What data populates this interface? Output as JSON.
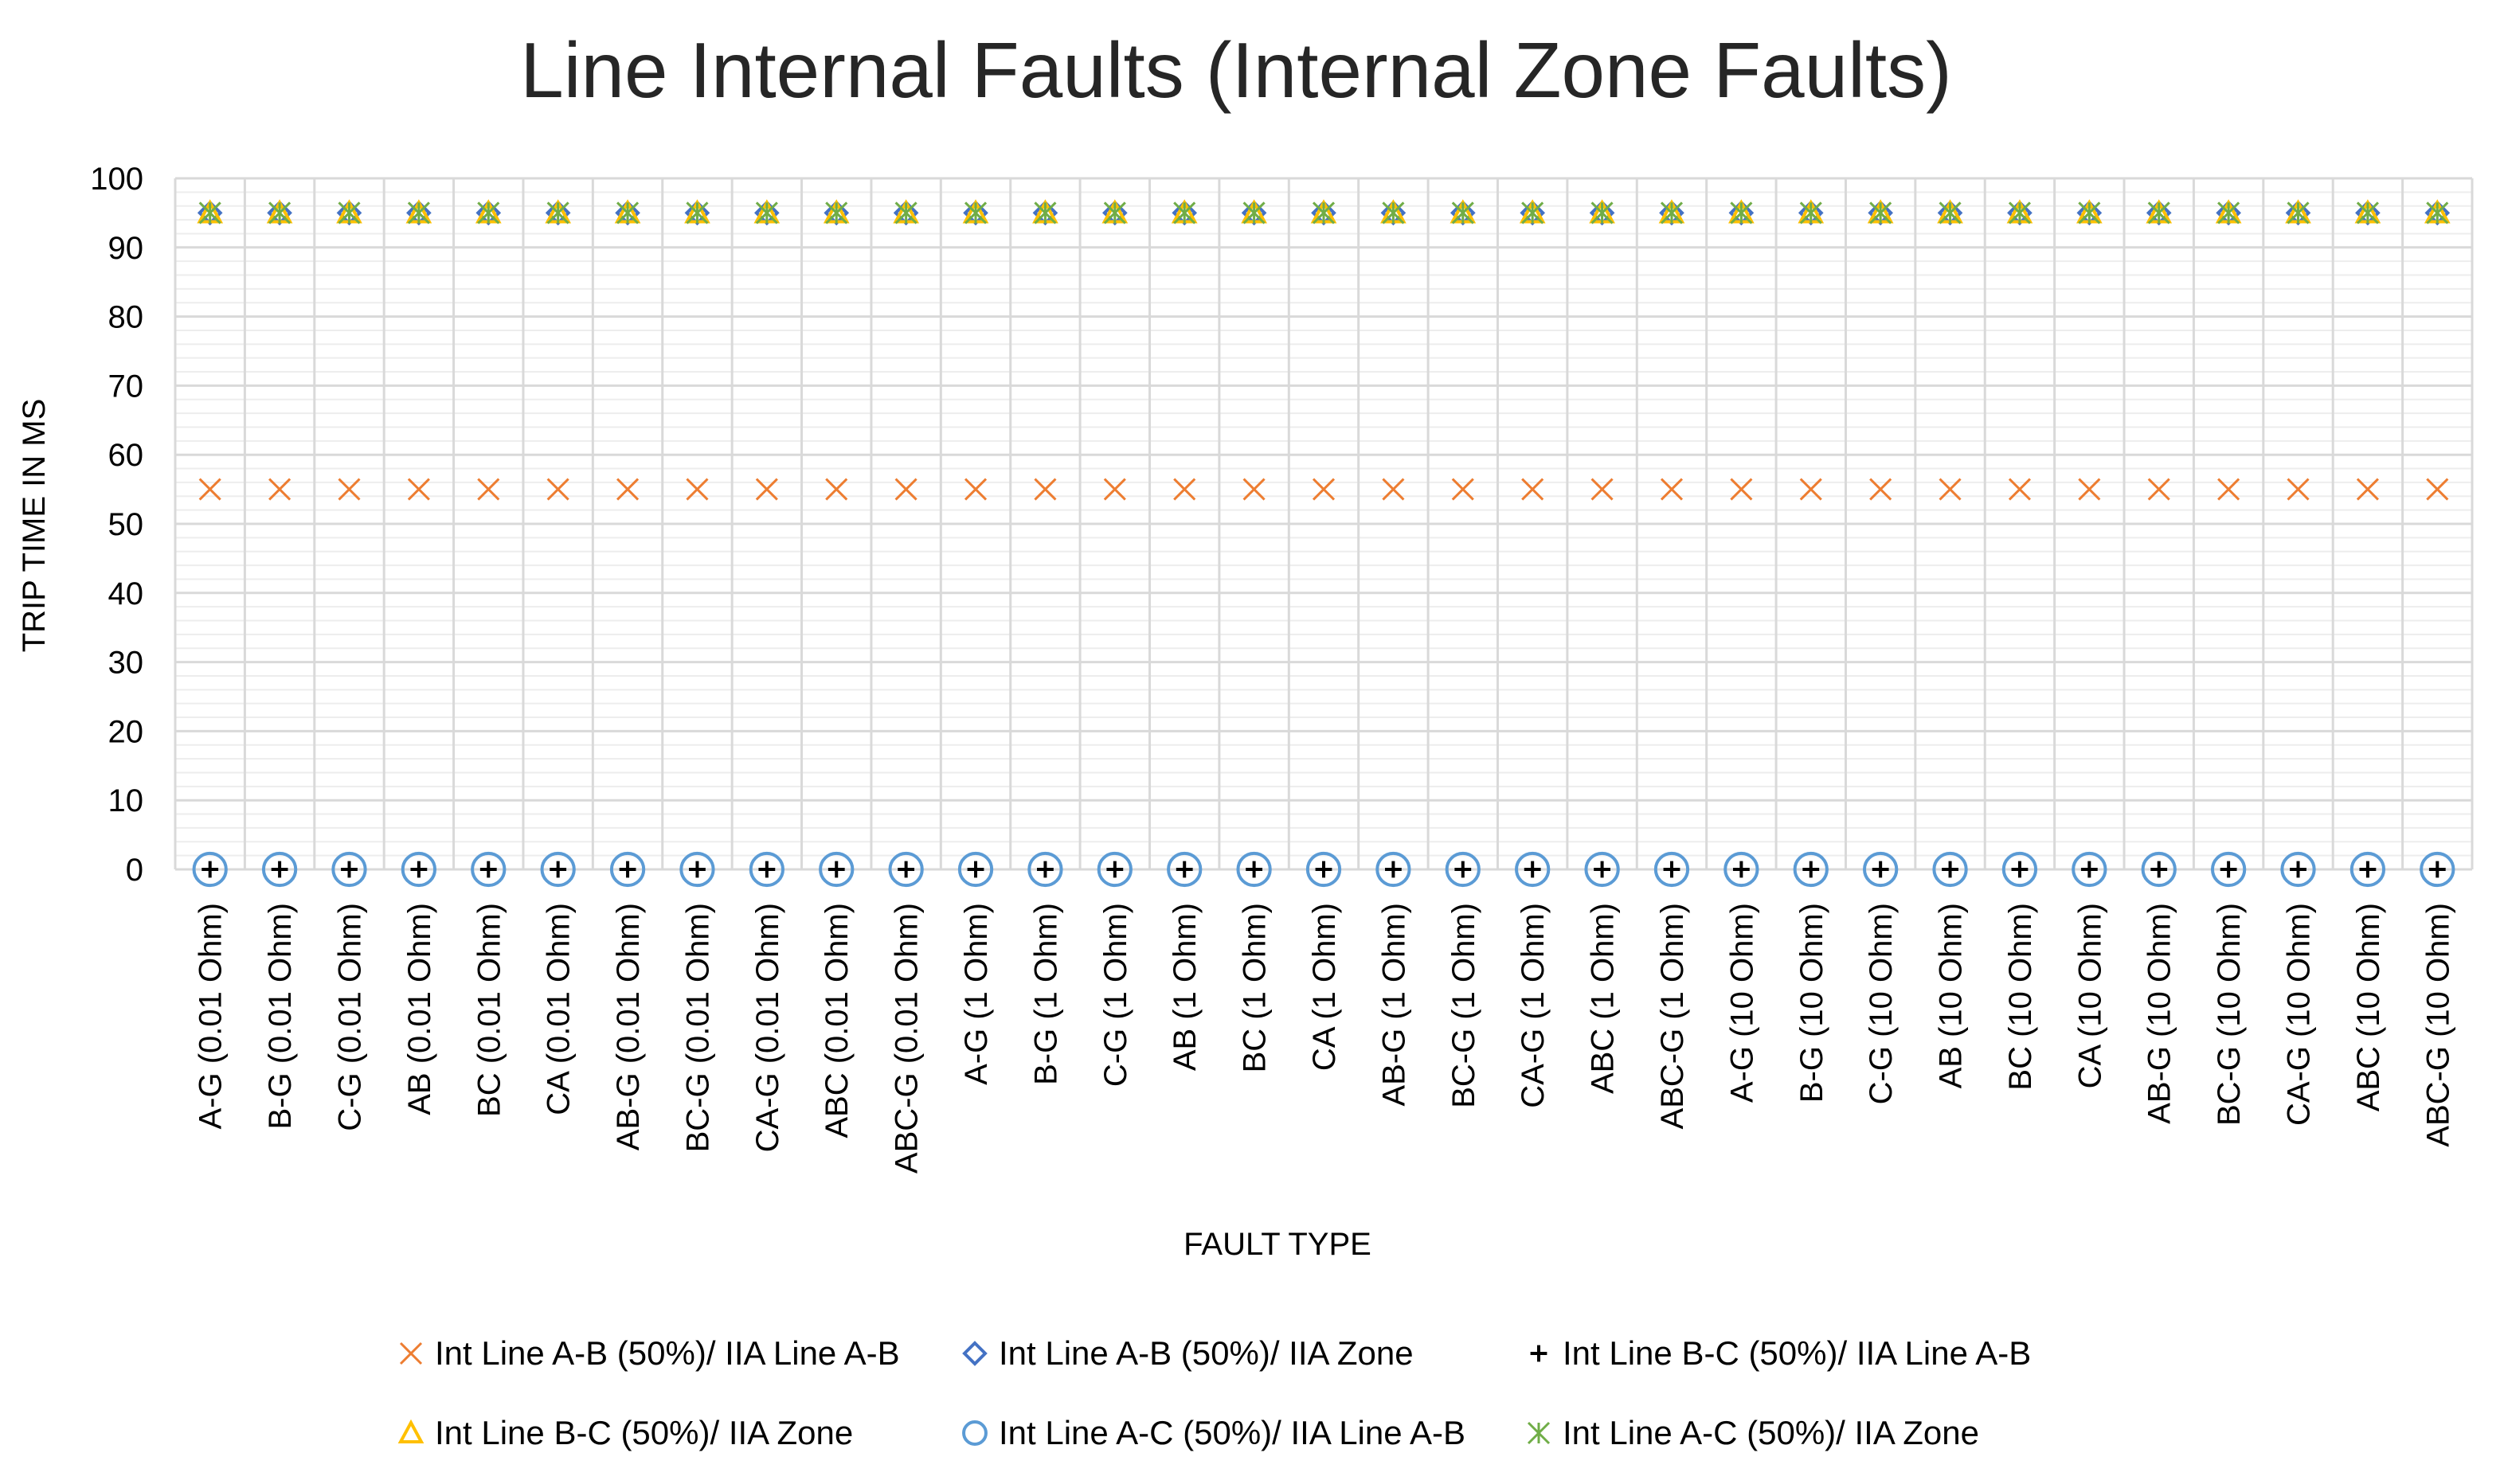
{
  "chart_data": {
    "type": "scatter",
    "title": "Line Internal Faults (Internal Zone Faults)",
    "xlabel": "FAULT TYPE",
    "ylabel": "TRIP TIME IN MS",
    "ylim": [
      0,
      100
    ],
    "yticks": [
      0,
      10,
      20,
      30,
      40,
      50,
      60,
      70,
      80,
      90,
      100
    ],
    "grid": true,
    "legend_position": "bottom",
    "categories": [
      "A-G (0.01 Ohm)",
      "B-G (0.01 Ohm)",
      "C-G (0.01 Ohm)",
      "AB (0.01 Ohm)",
      "BC (0.01 Ohm)",
      "CA (0.01 Ohm)",
      "AB-G (0.01 Ohm)",
      "BC-G (0.01 Ohm)",
      "CA-G (0.01 Ohm)",
      "ABC (0.01 Ohm)",
      "ABC-G (0.01 Ohm)",
      "A-G (1 Ohm)",
      "B-G (1 Ohm)",
      "C-G (1 Ohm)",
      "AB (1 Ohm)",
      "BC (1 Ohm)",
      "CA (1 Ohm)",
      "AB-G (1 Ohm)",
      "BC-G (1 Ohm)",
      "CA-G (1 Ohm)",
      "ABC (1 Ohm)",
      "ABC-G (1 Ohm)",
      "A-G (10 Ohm)",
      "B-G (10 Ohm)",
      "C-G (10 Ohm)",
      "AB (10 Ohm)",
      "BC (10 Ohm)",
      "CA (10 Ohm)",
      "AB-G (10 Ohm)",
      "BC-G (10 Ohm)",
      "CA-G (10 Ohm)",
      "ABC (10 Ohm)",
      "ABC-G (10 Ohm)"
    ],
    "series": [
      {
        "name": "Int Line A-B (50%)/ IIA Line A-B",
        "marker": "x",
        "color": "#ED7D31",
        "values": [
          55,
          55,
          55,
          55,
          55,
          55,
          55,
          55,
          55,
          55,
          55,
          55,
          55,
          55,
          55,
          55,
          55,
          55,
          55,
          55,
          55,
          55,
          55,
          55,
          55,
          55,
          55,
          55,
          55,
          55,
          55,
          55,
          55
        ]
      },
      {
        "name": "Int Line A-B (50%)/ IIA Zone",
        "marker": "diamond",
        "color": "#4472C4",
        "values": [
          95,
          95,
          95,
          95,
          95,
          95,
          95,
          95,
          95,
          95,
          95,
          95,
          95,
          95,
          95,
          95,
          95,
          95,
          95,
          95,
          95,
          95,
          95,
          95,
          95,
          95,
          95,
          95,
          95,
          95,
          95,
          95,
          95
        ]
      },
      {
        "name": "Int Line B-C (50%)/ IIA Line A-B",
        "marker": "plus",
        "color": "#000000",
        "values": [
          0,
          0,
          0,
          0,
          0,
          0,
          0,
          0,
          0,
          0,
          0,
          0,
          0,
          0,
          0,
          0,
          0,
          0,
          0,
          0,
          0,
          0,
          0,
          0,
          0,
          0,
          0,
          0,
          0,
          0,
          0,
          0,
          0
        ]
      },
      {
        "name": "Int Line B-C (50%)/ IIA Zone",
        "marker": "triangle",
        "color": "#FFC000",
        "values": [
          95,
          95,
          95,
          95,
          95,
          95,
          95,
          95,
          95,
          95,
          95,
          95,
          95,
          95,
          95,
          95,
          95,
          95,
          95,
          95,
          95,
          95,
          95,
          95,
          95,
          95,
          95,
          95,
          95,
          95,
          95,
          95,
          95
        ]
      },
      {
        "name": "Int Line A-C (50%)/ IIA Line A-B",
        "marker": "circle",
        "color": "#5B9BD5",
        "values": [
          0,
          0,
          0,
          0,
          0,
          0,
          0,
          0,
          0,
          0,
          0,
          0,
          0,
          0,
          0,
          0,
          0,
          0,
          0,
          0,
          0,
          0,
          0,
          0,
          0,
          0,
          0,
          0,
          0,
          0,
          0,
          0,
          0
        ]
      },
      {
        "name": "Int Line A-C (50%)/ IIA Zone",
        "marker": "star",
        "color": "#70AD47",
        "values": [
          95,
          95,
          95,
          95,
          95,
          95,
          95,
          95,
          95,
          95,
          95,
          95,
          95,
          95,
          95,
          95,
          95,
          95,
          95,
          95,
          95,
          95,
          95,
          95,
          95,
          95,
          95,
          95,
          95,
          95,
          95,
          95,
          95
        ]
      }
    ]
  }
}
